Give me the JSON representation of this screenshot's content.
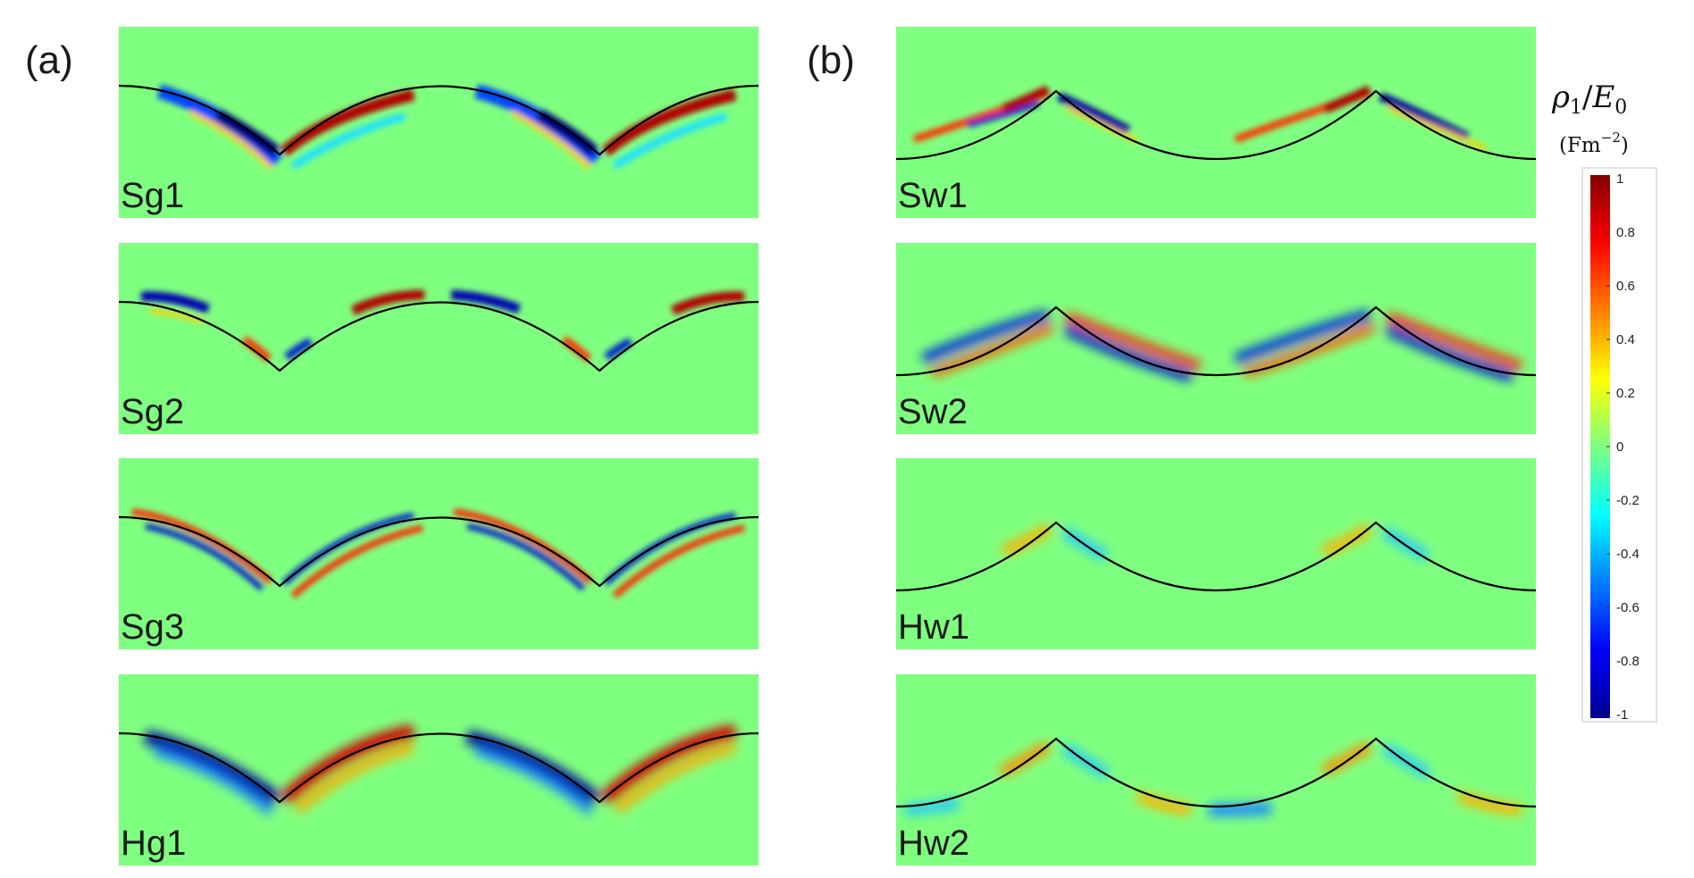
{
  "panel_labels": {
    "a": "(a)",
    "b": "(b)"
  },
  "panels": [
    {
      "id": "Sg1",
      "label": "Sg1",
      "group": "a",
      "profile": "groove"
    },
    {
      "id": "Sg2",
      "label": "Sg2",
      "group": "a",
      "profile": "groove"
    },
    {
      "id": "Sg3",
      "label": "Sg3",
      "group": "a",
      "profile": "groove"
    },
    {
      "id": "Hg1",
      "label": "Hg1",
      "group": "a",
      "profile": "groove"
    },
    {
      "id": "Sw1",
      "label": "Sw1",
      "group": "b",
      "profile": "wedge"
    },
    {
      "id": "Sw2",
      "label": "Sw2",
      "group": "b",
      "profile": "wedge"
    },
    {
      "id": "Hw1",
      "label": "Hw1",
      "group": "b",
      "profile": "wedge"
    },
    {
      "id": "Hw2",
      "label": "Hw2",
      "group": "b",
      "profile": "wedge"
    }
  ],
  "colorbar": {
    "title_rho": "ρ",
    "title_sub": "1",
    "title_slash": "/",
    "title_e": "E",
    "title_esub": "0",
    "unit_open": "(Fm",
    "unit_exp": "−2",
    "unit_close": ")",
    "ticks": [
      "1",
      "0.8",
      "0.6",
      "0.4",
      "0.2",
      "0",
      "-0.2",
      "-0.4",
      "-0.6",
      "-0.8",
      "-1"
    ],
    "range": [
      -1,
      1
    ],
    "colors": [
      "#00008f",
      "#0000ff",
      "#00ffff",
      "#7fff7f",
      "#ffff00",
      "#ff0000",
      "#800000"
    ]
  },
  "colors": {
    "background_field": "#7fff7f",
    "curve": "#000000"
  }
}
